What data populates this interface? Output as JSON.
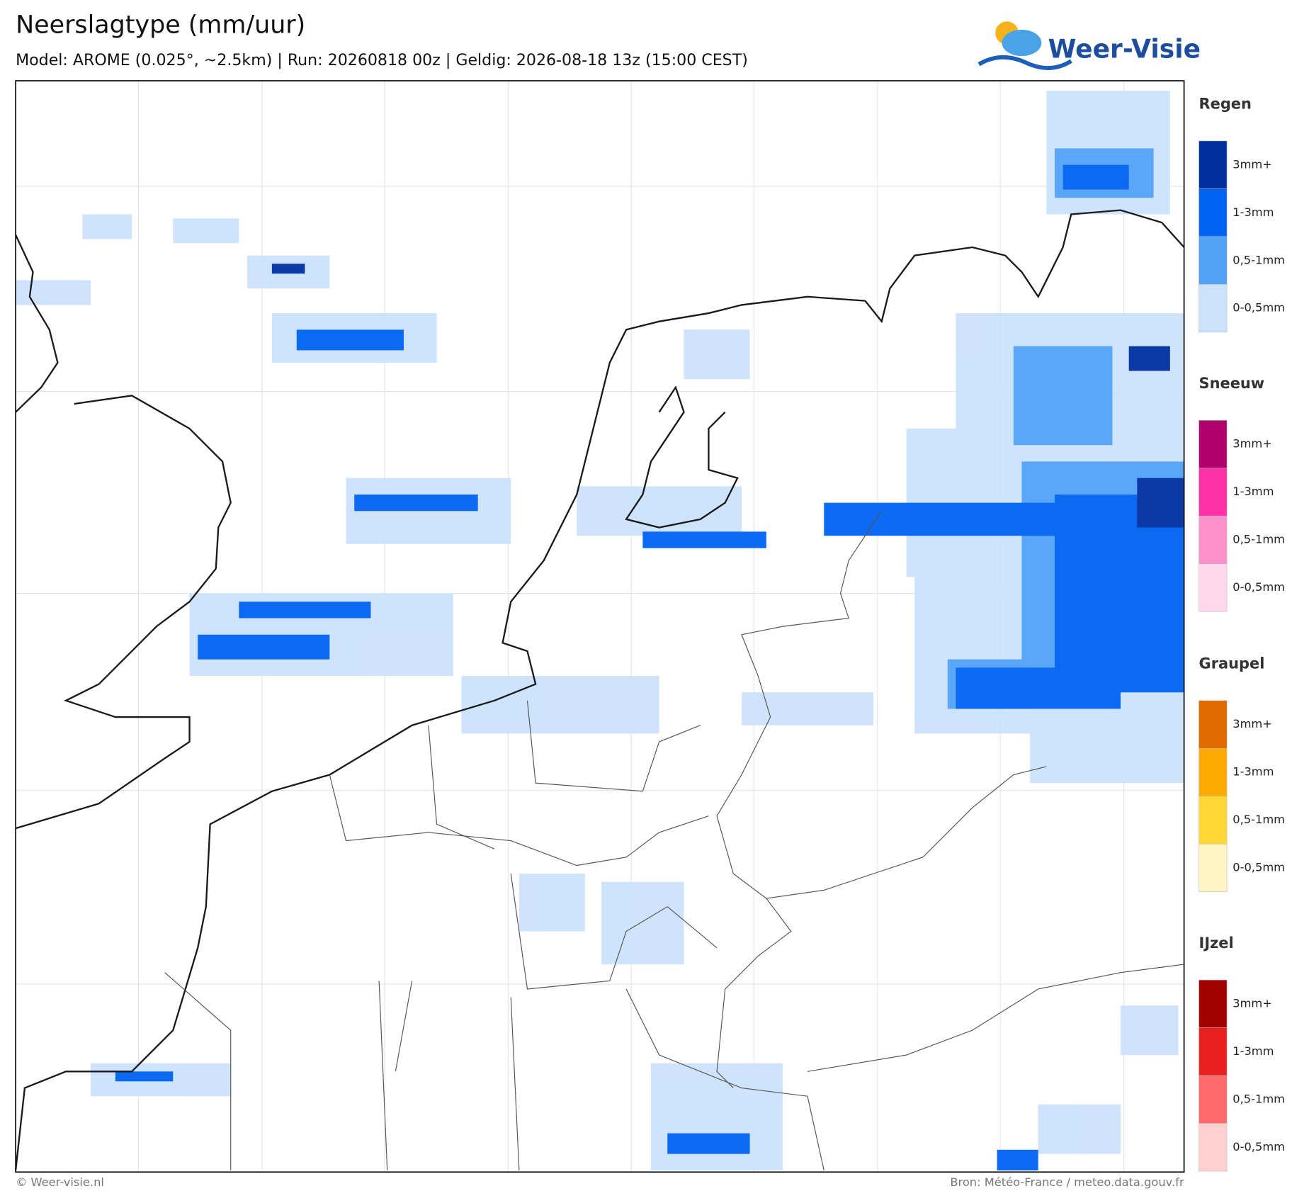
{
  "header": {
    "title": "Neerslagtype (mm/uur)",
    "subtitle": "Model: AROME (0.025°, ~2.5km)  |  Run: 20260818 00z  |  Geldig: 2026-08-18 13z (15:00 CEST)"
  },
  "logo": {
    "text": "Weer-Visie"
  },
  "legend": {
    "groups": [
      {
        "title": "Regen",
        "items": [
          {
            "label": "3mm+",
            "color": "#0030a0"
          },
          {
            "label": "1-3mm",
            "color": "#0062f2"
          },
          {
            "label": "0,5-1mm",
            "color": "#52a2f8"
          },
          {
            "label": "0-0,5mm",
            "color": "#cce2fc"
          }
        ]
      },
      {
        "title": "Sneeuw",
        "items": [
          {
            "label": "3mm+",
            "color": "#b0006e"
          },
          {
            "label": "1-3mm",
            "color": "#ff30a8"
          },
          {
            "label": "0,5-1mm",
            "color": "#ff90cc"
          },
          {
            "label": "0-0,5mm",
            "color": "#ffd8ec"
          }
        ]
      },
      {
        "title": "Graupel",
        "items": [
          {
            "label": "3mm+",
            "color": "#e06a00"
          },
          {
            "label": "1-3mm",
            "color": "#ffaa00"
          },
          {
            "label": "0,5-1mm",
            "color": "#ffd836"
          },
          {
            "label": "0-0,5mm",
            "color": "#fff4c4"
          }
        ]
      },
      {
        "title": "IJzel",
        "items": [
          {
            "label": "3mm+",
            "color": "#a00000"
          },
          {
            "label": "1-3mm",
            "color": "#e82020"
          },
          {
            "label": "0,5-1mm",
            "color": "#ff6a6a"
          },
          {
            "label": "0-0,5mm",
            "color": "#ffd0d0"
          }
        ]
      }
    ]
  },
  "footer": {
    "left": "© Weer-visie.nl",
    "right": "Bron: Météo-France / meteo.data.gouv.fr"
  }
}
